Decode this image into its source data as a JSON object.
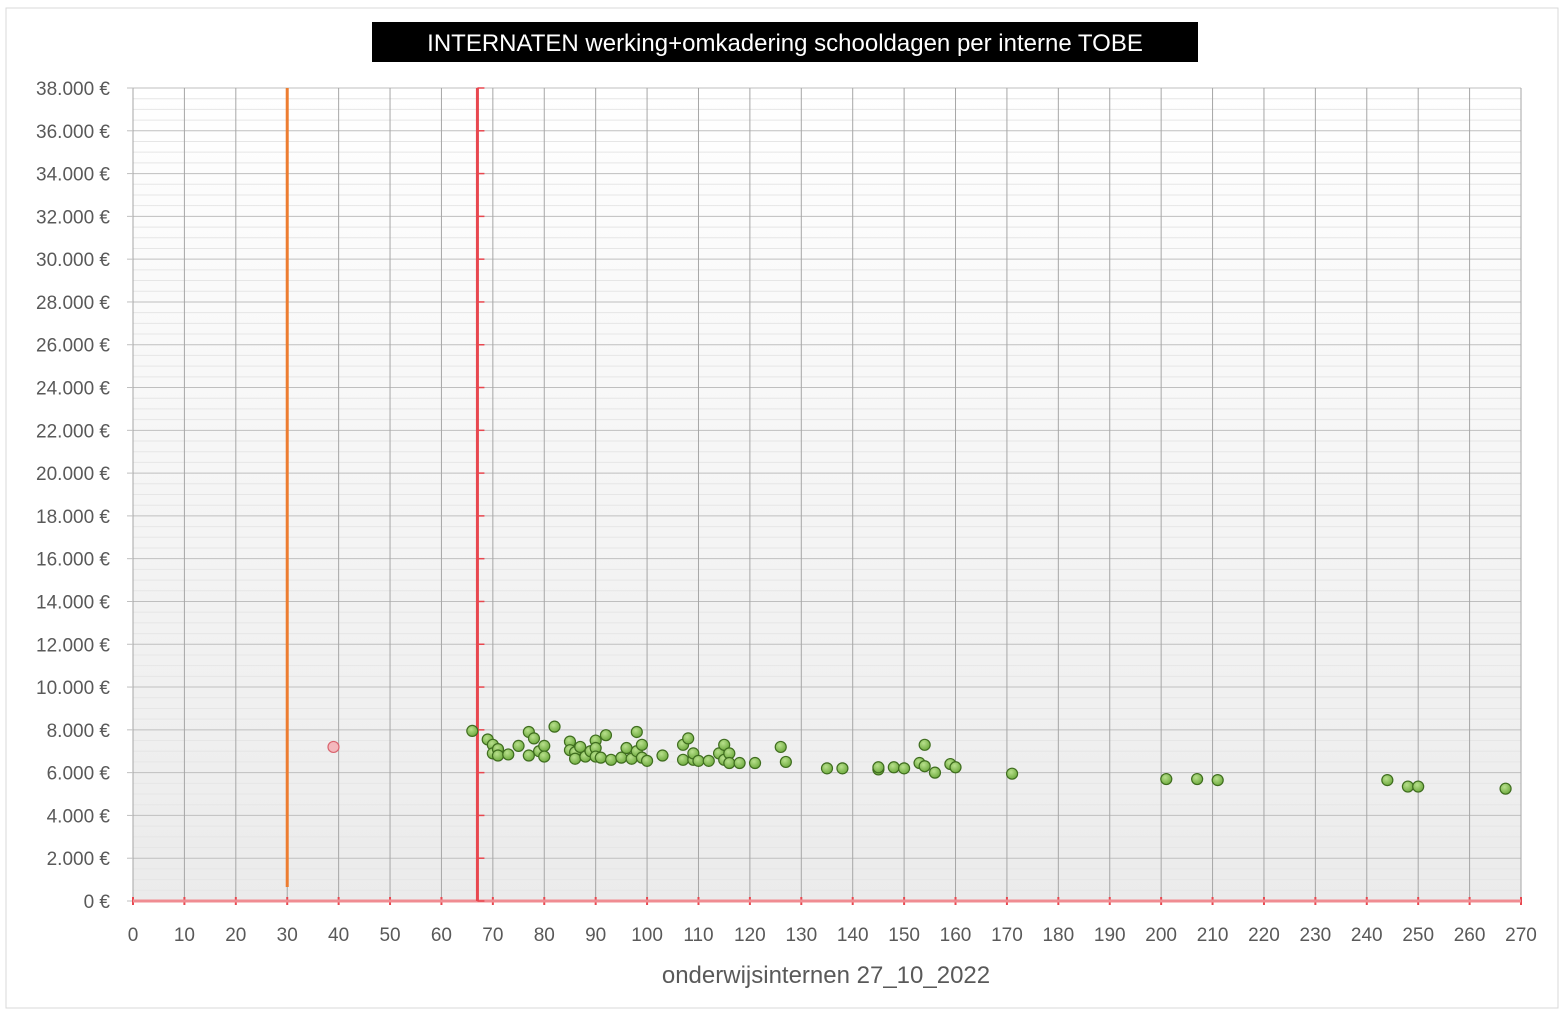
{
  "chart_data": {
    "type": "scatter",
    "title": "INTERNATEN werking+omkadering schooldagen per interne TOBE",
    "xlabel": "onderwijsinternen 27_10_2022",
    "ylabel": "",
    "xlim": [
      0,
      270
    ],
    "ylim": [
      0,
      38000
    ],
    "x_ticks": [
      0,
      10,
      20,
      30,
      40,
      50,
      60,
      70,
      80,
      90,
      100,
      110,
      120,
      130,
      140,
      150,
      160,
      170,
      180,
      190,
      200,
      210,
      220,
      230,
      240,
      250,
      260,
      270
    ],
    "y_ticks": [
      0,
      2000,
      4000,
      6000,
      8000,
      10000,
      12000,
      14000,
      16000,
      18000,
      20000,
      22000,
      24000,
      26000,
      28000,
      30000,
      32000,
      34000,
      36000,
      38000
    ],
    "y_tick_labels": [
      "0 €",
      "2.000 €",
      "4.000 €",
      "6.000 €",
      "8.000 €",
      "10.000 €",
      "12.000 €",
      "14.000 €",
      "16.000 €",
      "18.000 €",
      "20.000 €",
      "22.000 €",
      "24.000 €",
      "26.000 €",
      "28.000 €",
      "30.000 €",
      "32.000 €",
      "34.000 €",
      "36.000 €",
      "38.000 €"
    ],
    "grid": true,
    "reference_lines": [
      {
        "x": 30,
        "color": "#ed7d31"
      },
      {
        "x": 67,
        "color": "#e8474f"
      }
    ],
    "series": [
      {
        "color": "#70ad47",
        "points": [
          [
            66,
            7950
          ],
          [
            69,
            7550
          ],
          [
            70,
            7300
          ],
          [
            70,
            6900
          ],
          [
            71,
            7100
          ],
          [
            71,
            6800
          ],
          [
            73,
            6850
          ],
          [
            75,
            7250
          ],
          [
            77,
            7900
          ],
          [
            77,
            6800
          ],
          [
            78,
            7600
          ],
          [
            79,
            7000
          ],
          [
            80,
            7250
          ],
          [
            80,
            6750
          ],
          [
            82,
            8150
          ],
          [
            85,
            7450
          ],
          [
            85,
            7050
          ],
          [
            86,
            6950
          ],
          [
            86,
            6650
          ],
          [
            87,
            7200
          ],
          [
            88,
            6750
          ],
          [
            89,
            7000
          ],
          [
            90,
            7500
          ],
          [
            90,
            7150
          ],
          [
            90,
            6750
          ],
          [
            91,
            6700
          ],
          [
            92,
            7750
          ],
          [
            93,
            6600
          ],
          [
            95,
            6700
          ],
          [
            96,
            7150
          ],
          [
            97,
            6650
          ],
          [
            98,
            7000
          ],
          [
            98,
            7900
          ],
          [
            99,
            6700
          ],
          [
            99,
            7300
          ],
          [
            100,
            6550
          ],
          [
            103,
            6800
          ],
          [
            107,
            6600
          ],
          [
            107,
            7300
          ],
          [
            108,
            7600
          ],
          [
            109,
            6600
          ],
          [
            109,
            6900
          ],
          [
            110,
            6550
          ],
          [
            112,
            6550
          ],
          [
            114,
            6900
          ],
          [
            115,
            7300
          ],
          [
            115,
            6600
          ],
          [
            116,
            6900
          ],
          [
            116,
            6450
          ],
          [
            118,
            6450
          ],
          [
            121,
            6450
          ],
          [
            126,
            7200
          ],
          [
            127,
            6500
          ],
          [
            135,
            6200
          ],
          [
            138,
            6200
          ],
          [
            145,
            6150
          ],
          [
            145,
            6250
          ],
          [
            148,
            6250
          ],
          [
            150,
            6200
          ],
          [
            153,
            6450
          ],
          [
            154,
            7300
          ],
          [
            154,
            6300
          ],
          [
            156,
            6000
          ],
          [
            159,
            6400
          ],
          [
            160,
            6250
          ],
          [
            171,
            5950
          ],
          [
            201,
            5700
          ],
          [
            207,
            5700
          ],
          [
            211,
            5650
          ],
          [
            244,
            5650
          ],
          [
            248,
            5350
          ],
          [
            250,
            5350
          ],
          [
            267,
            5250
          ]
        ]
      },
      {
        "color": "#f4b8bd",
        "points": [
          [
            39,
            7200
          ]
        ]
      }
    ]
  }
}
